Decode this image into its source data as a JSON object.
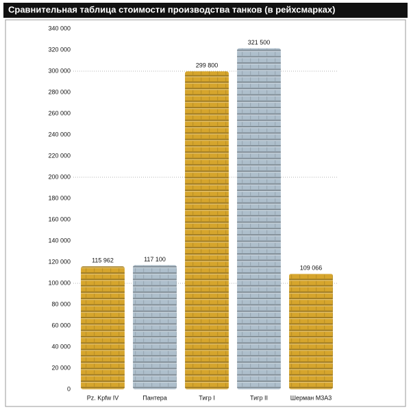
{
  "chart_data": {
    "type": "bar",
    "title": "Сравнительная таблица стоимости производства танков (в рейхсмарках)",
    "categories": [
      "Pz. Kpfw IV",
      "Пантера",
      "Тигр I",
      "Тигр II",
      "Шерман M3A3"
    ],
    "values": [
      115962,
      117100,
      299800,
      321500,
      109066
    ],
    "value_labels": [
      "115 962",
      "117 100",
      "299 800",
      "321 500",
      "109 066"
    ],
    "colors": [
      "#d6a52c",
      "#aebfcc",
      "#d6a52c",
      "#aebfcc",
      "#d6a52c"
    ],
    "ylim": [
      0,
      340000
    ],
    "yticks": [
      0,
      {
        "value": 20000,
        "label": "20 000"
      },
      {
        "value": 40000,
        "label": "40 000"
      },
      {
        "value": 60000,
        "label": "60 000"
      },
      {
        "value": 80000,
        "label": "80 000"
      },
      {
        "value": 100000,
        "label": "100 000"
      },
      {
        "value": 120000,
        "label": "120 000"
      },
      {
        "value": 140000,
        "label": "140 000"
      },
      {
        "value": 160000,
        "label": "160 000"
      },
      {
        "value": 180000,
        "label": "180 000"
      },
      {
        "value": 200000,
        "label": "200 000"
      },
      {
        "value": 220000,
        "label": "220 000"
      },
      {
        "value": 240000,
        "label": "240 000"
      },
      {
        "value": 260000,
        "label": "260 000"
      },
      {
        "value": 280000,
        "label": "280 000"
      },
      {
        "value": 300000,
        "label": "300 000"
      },
      {
        "value": 320000,
        "label": "320 000"
      },
      {
        "value": 340000,
        "label": "340 000"
      }
    ],
    "grid": true
  }
}
